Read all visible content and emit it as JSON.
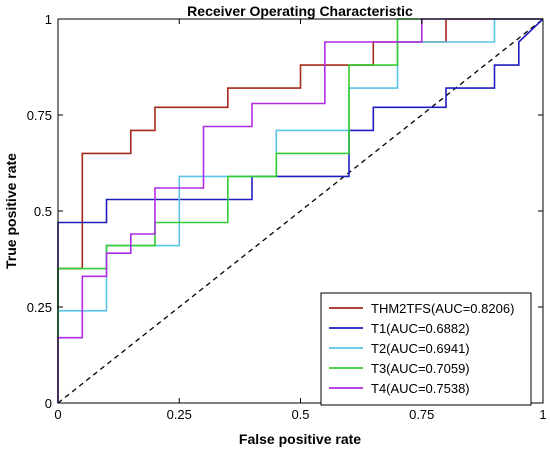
{
  "chart_data": {
    "type": "line",
    "title": "Receiver Operating Characteristic",
    "xlabel": "False positive rate",
    "ylabel": "True positive rate",
    "xlim": [
      0,
      1
    ],
    "ylim": [
      0,
      1
    ],
    "x_ticks": [
      0,
      0.25,
      0.5,
      0.75,
      1
    ],
    "x_tick_labels": [
      "0",
      "0.25",
      "0.5",
      "0.75",
      "1"
    ],
    "y_ticks": [
      0,
      0.25,
      0.5,
      0.75,
      1
    ],
    "y_tick_labels": [
      "0",
      "0.25",
      "0.5",
      "0.75",
      "1"
    ],
    "grid": false,
    "legend_position": "bottom-right",
    "reference_line": {
      "style": "dashed",
      "color": "#000000",
      "x": [
        0,
        1
      ],
      "y": [
        0,
        1
      ]
    },
    "series": [
      {
        "name": "THM2TFS(AUC=0.8206)",
        "color": "#a52a1a",
        "x": [
          0,
          0,
          0.05,
          0.05,
          0.15,
          0.15,
          0.2,
          0.2,
          0.35,
          0.35,
          0.5,
          0.5,
          0.65,
          0.65,
          0.8,
          0.8,
          1
        ],
        "y": [
          0,
          0.35,
          0.35,
          0.65,
          0.65,
          0.71,
          0.71,
          0.77,
          0.77,
          0.82,
          0.82,
          0.88,
          0.88,
          0.94,
          0.94,
          1,
          1
        ]
      },
      {
        "name": "T1(AUC=0.6882)",
        "color": "#1f1fbf",
        "x": [
          0,
          0,
          0.1,
          0.1,
          0.4,
          0.4,
          0.6,
          0.6,
          0.65,
          0.65,
          0.8,
          0.8,
          0.9,
          0.9,
          0.95,
          0.95,
          1
        ],
        "y": [
          0,
          0.47,
          0.47,
          0.53,
          0.53,
          0.59,
          0.59,
          0.71,
          0.71,
          0.77,
          0.77,
          0.82,
          0.82,
          0.88,
          0.88,
          0.94,
          1
        ]
      },
      {
        "name": "T2(AUC=0.6941)",
        "color": "#5bc3e6",
        "x": [
          0,
          0,
          0.1,
          0.1,
          0.25,
          0.25,
          0.45,
          0.45,
          0.6,
          0.6,
          0.7,
          0.7,
          0.9,
          0.9,
          1
        ],
        "y": [
          0,
          0.24,
          0.24,
          0.41,
          0.41,
          0.59,
          0.59,
          0.71,
          0.71,
          0.82,
          0.82,
          0.94,
          0.94,
          1,
          1
        ]
      },
      {
        "name": "T3(AUC=0.7059)",
        "color": "#33cc33",
        "x": [
          0,
          0,
          0.1,
          0.1,
          0.2,
          0.2,
          0.35,
          0.35,
          0.45,
          0.45,
          0.6,
          0.6,
          0.7,
          0.7,
          1
        ],
        "y": [
          0,
          0.35,
          0.35,
          0.41,
          0.41,
          0.47,
          0.47,
          0.59,
          0.59,
          0.65,
          0.65,
          0.88,
          0.88,
          1,
          1
        ]
      },
      {
        "name": "T4(AUC=0.7538)",
        "color": "#b02ce6",
        "x": [
          0,
          0,
          0.05,
          0.05,
          0.1,
          0.1,
          0.15,
          0.15,
          0.2,
          0.2,
          0.3,
          0.3,
          0.4,
          0.4,
          0.55,
          0.55,
          0.75,
          0.75,
          1
        ],
        "y": [
          0,
          0.17,
          0.17,
          0.33,
          0.33,
          0.39,
          0.39,
          0.44,
          0.44,
          0.56,
          0.56,
          0.72,
          0.72,
          0.78,
          0.78,
          0.94,
          0.94,
          1,
          1
        ]
      }
    ]
  }
}
